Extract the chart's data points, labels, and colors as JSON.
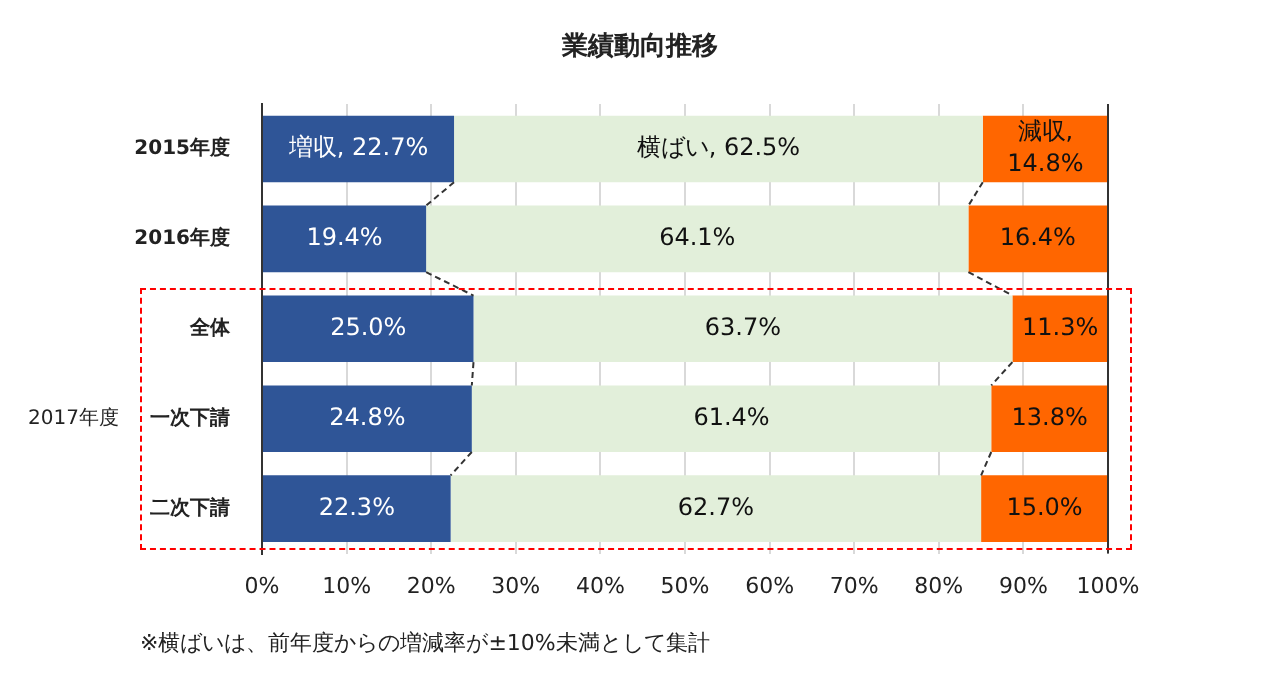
{
  "chart_data": {
    "type": "bar",
    "orientation": "horizontal",
    "stacked": true,
    "title": "業績動向推移",
    "categories": [
      "2015年度",
      "2016年度",
      "全体",
      "一次下請",
      "二次下請"
    ],
    "series": [
      {
        "color": "#2f5597",
        "values": [
          22.7,
          19.4,
          25.0,
          24.8,
          22.3
        ],
        "value_labels": [
          "増収, 22.7%",
          "19.4%",
          "25.0%",
          "24.8%",
          "22.3%"
        ]
      },
      {
        "color": "#e2efda",
        "values": [
          62.5,
          64.1,
          63.7,
          61.4,
          62.7
        ],
        "value_labels": [
          "横ばい, 62.5%",
          "64.1%",
          "63.7%",
          "61.4%",
          "62.7%"
        ]
      },
      {
        "color": "#ff6600",
        "values": [
          14.8,
          16.4,
          11.3,
          13.8,
          15.0
        ],
        "value_labels": [
          "減収, 14.8%",
          "16.4%",
          "11.3%",
          "13.8%",
          "15.0%"
        ]
      }
    ],
    "xlim": [
      0,
      100
    ],
    "xticks": [
      {
        "value": 0,
        "label": "0%"
      },
      {
        "value": 10,
        "label": "10%"
      },
      {
        "value": 20,
        "label": "20%"
      },
      {
        "value": 30,
        "label": "30%"
      },
      {
        "value": 40,
        "label": "40%"
      },
      {
        "value": 50,
        "label": "50%"
      },
      {
        "value": 60,
        "label": "60%"
      },
      {
        "value": 70,
        "label": "70%"
      },
      {
        "value": 80,
        "label": "80%"
      },
      {
        "value": 90,
        "label": "90%"
      },
      {
        "value": 100,
        "label": "100%"
      }
    ],
    "grid": "x",
    "legend": false,
    "annotations": [
      "2017年度",
      "※横ばいは、前年度からの増減率が±10%未満として集計"
    ]
  }
}
